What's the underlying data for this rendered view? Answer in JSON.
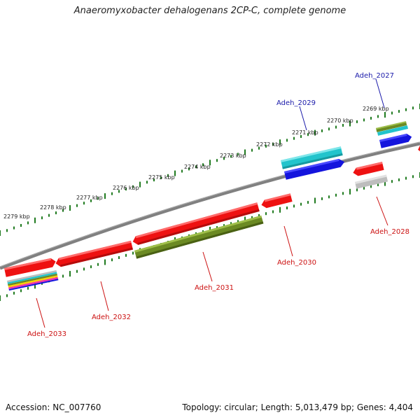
{
  "title": "Anaeromyxobacter dehalogenans 2CP-C, complete genome",
  "footer": {
    "accession": "Accession: NC_007760",
    "summary": "Topology: circular; Length: 5,013,479 bp; Genes: 4,404"
  },
  "colors": {
    "backbone": "#808080",
    "tick": "#1f7a1f",
    "label_forward": "#1a1aaa",
    "label_reverse": "#cc1111",
    "red": "#ee1111",
    "olive": "#6b8a23",
    "cyan": "#22c4cc",
    "blue": "#1414dd",
    "grey": "#bdbdbd"
  },
  "kbp_labels": [
    "2279 kbp",
    "2278 kbp",
    "2277 kbp",
    "2276 kbp",
    "2275 kbp",
    "2274 kbp",
    "2273 kbp",
    "2272 kbp",
    "2271 kbp",
    "2270 kbp",
    "2269 kbp"
  ],
  "genes": [
    {
      "id": "Adeh_2027",
      "label": "Adeh_2027",
      "strand": "forward"
    },
    {
      "id": "Adeh_2029",
      "label": "Adeh_2029",
      "strand": "forward"
    },
    {
      "id": "Adeh_2028",
      "label": "Adeh_2028",
      "strand": "reverse"
    },
    {
      "id": "Adeh_2030",
      "label": "Adeh_2030",
      "strand": "reverse"
    },
    {
      "id": "Adeh_2031",
      "label": "Adeh_2031",
      "strand": "reverse"
    },
    {
      "id": "Adeh_2032",
      "label": "Adeh_2032",
      "strand": "reverse"
    },
    {
      "id": "Adeh_2033",
      "label": "Adeh_2033",
      "strand": "reverse"
    }
  ]
}
